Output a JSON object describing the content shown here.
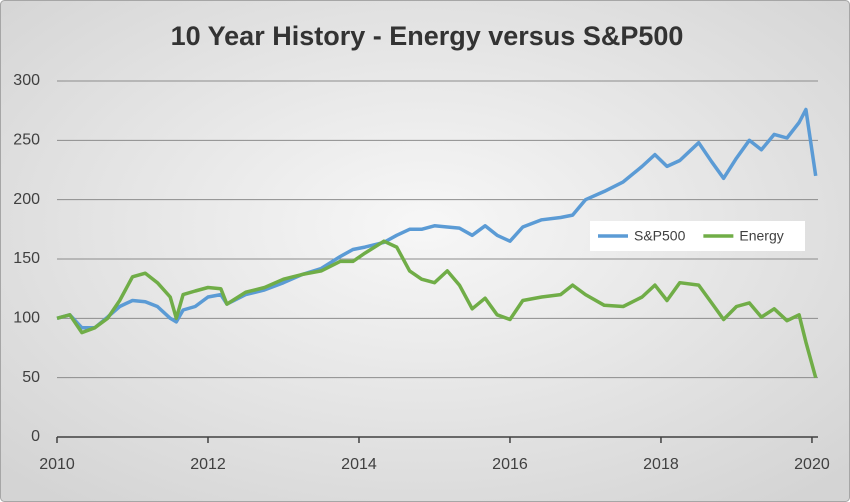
{
  "chart_data": {
    "type": "line",
    "title": "10 Year History - Energy versus S&P500",
    "x": [
      2010,
      2010.17,
      2010.33,
      2010.5,
      2010.67,
      2010.83,
      2011,
      2011.17,
      2011.33,
      2011.5,
      2011.58,
      2011.67,
      2011.83,
      2012,
      2012.17,
      2012.25,
      2012.5,
      2012.75,
      2013,
      2013.25,
      2013.5,
      2013.75,
      2013.92,
      2014.08,
      2014.33,
      2014.5,
      2014.67,
      2014.83,
      2015,
      2015.17,
      2015.33,
      2015.5,
      2015.67,
      2015.83,
      2016,
      2016.17,
      2016.42,
      2016.67,
      2016.83,
      2017,
      2017.25,
      2017.5,
      2017.75,
      2017.92,
      2018.08,
      2018.25,
      2018.5,
      2018.67,
      2018.83,
      2019,
      2019.17,
      2019.33,
      2019.5,
      2019.67,
      2019.83,
      2019.92,
      2020.05
    ],
    "series": [
      {
        "name": "S&P500",
        "color": "#5b9bd5",
        "values": [
          100,
          103,
          92,
          92,
          101,
          110,
          115,
          114,
          110,
          100,
          97,
          107,
          110,
          118,
          120,
          112,
          120,
          124,
          130,
          137,
          142,
          152,
          158,
          160,
          164,
          170,
          175,
          175,
          178,
          177,
          176,
          170,
          178,
          170,
          165,
          177,
          183,
          185,
          187,
          200,
          207,
          215,
          228,
          238,
          228,
          233,
          248,
          232,
          218,
          235,
          250,
          242,
          255,
          252,
          265,
          276,
          220
        ]
      },
      {
        "name": "Energy",
        "color": "#70ad47",
        "values": [
          100,
          103,
          88,
          92,
          100,
          115,
          135,
          138,
          130,
          118,
          100,
          120,
          123,
          126,
          125,
          112,
          122,
          126,
          133,
          137,
          140,
          148,
          148,
          155,
          165,
          160,
          140,
          133,
          130,
          140,
          128,
          108,
          117,
          103,
          99,
          115,
          118,
          120,
          128,
          120,
          111,
          110,
          118,
          128,
          115,
          130,
          128,
          113,
          99,
          110,
          113,
          101,
          108,
          98,
          103,
          80,
          50
        ]
      }
    ],
    "xlim": [
      2010,
      2020.08
    ],
    "xticks": [
      2010,
      2012,
      2014,
      2016,
      2018,
      2020
    ],
    "ylim": [
      0,
      300
    ],
    "yticks": [
      0,
      50,
      100,
      150,
      200,
      250,
      300
    ],
    "grid": true
  }
}
